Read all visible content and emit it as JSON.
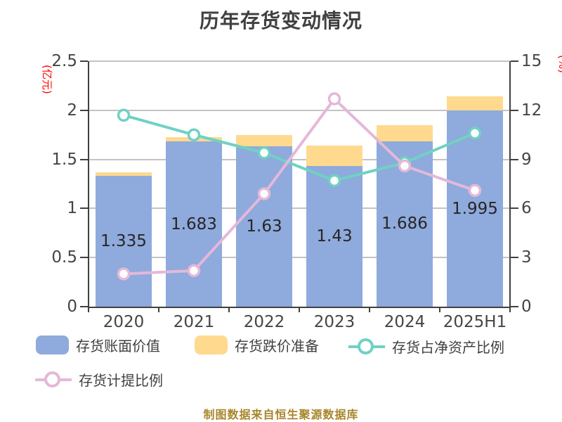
{
  "title": "历年存货变动情况",
  "footer": "制图数据来自恒生聚源数据库",
  "colors": {
    "bar_blue": "#8FAADC",
    "bar_yellow": "#FFD98E",
    "line_teal": "#70D1C3",
    "line_pink": "#E4B8D9",
    "marker_fill": "#FFFFFF",
    "axis_text": "#454545",
    "title_text": "#404040",
    "unit_red": "#FF0000",
    "footer_gold": "#A8862C",
    "gridline": "#C3C3C3"
  },
  "left_axis": {
    "unit": "(亿元)",
    "ticks": [
      0,
      0.5,
      1,
      1.5,
      2,
      2.5
    ],
    "max": 2.5
  },
  "right_axis": {
    "unit": "(%)",
    "ticks": [
      0,
      3,
      6,
      9,
      12,
      15
    ],
    "max": 15
  },
  "chart_data": {
    "type": "bar",
    "subtype": "stacked-bar-with-lines",
    "title": "历年存货变动情况",
    "categories": [
      "2020",
      "2021",
      "2022",
      "2023",
      "2024",
      "2025H1"
    ],
    "series": [
      {
        "name": "存货账面价值",
        "type": "bar",
        "axis": "left",
        "color": "#8FAADC",
        "values": [
          1.335,
          1.683,
          1.63,
          1.43,
          1.686,
          1.995
        ],
        "labels": [
          "1.335",
          "1.683",
          "1.63",
          "1.43",
          "1.686",
          "1.995"
        ]
      },
      {
        "name": "存货跌价准备",
        "type": "bar",
        "axis": "left",
        "color": "#FFD98E",
        "values": [
          0.03,
          0.04,
          0.12,
          0.21,
          0.16,
          0.15
        ]
      },
      {
        "name": "存货占净资产比例",
        "type": "line",
        "axis": "right",
        "color": "#70D1C3",
        "values": [
          11.7,
          10.5,
          9.4,
          7.7,
          8.8,
          10.6
        ]
      },
      {
        "name": "存货计提比例",
        "type": "line",
        "axis": "right",
        "color": "#E4B8D9",
        "values": [
          2.0,
          2.2,
          6.9,
          12.7,
          8.6,
          7.1
        ]
      }
    ],
    "xlabel": "",
    "ylabel_left": "(亿元)",
    "ylabel_right": "(%)",
    "ylim_left": [
      0,
      2.5
    ],
    "ylim_right": [
      0,
      15
    ],
    "grid": true,
    "legend_position": "bottom"
  }
}
